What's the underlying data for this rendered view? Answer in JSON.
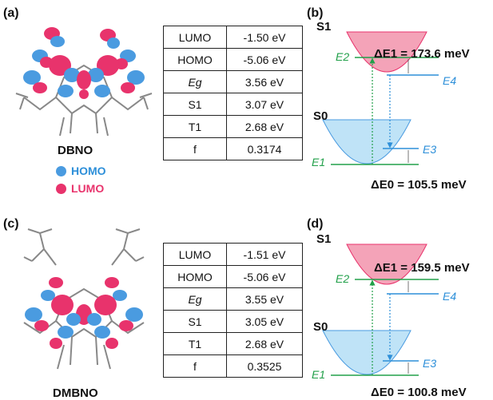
{
  "panels": {
    "a": {
      "label": "(a)"
    },
    "b": {
      "label": "(b)"
    },
    "c": {
      "label": "(c)"
    },
    "d": {
      "label": "(d)"
    }
  },
  "legend": {
    "homo": "HOMO",
    "lumo": "LUMO",
    "homo_color": "#4a9be0",
    "lumo_color": "#e8336c"
  },
  "molecules": [
    {
      "name": "DBNO",
      "rows": [
        {
          "key": "LUMO",
          "value": "-1.50 eV"
        },
        {
          "key": "HOMO",
          "value": "-5.06 eV"
        },
        {
          "key": "Eg",
          "value": "3.56 eV"
        },
        {
          "key": "S1",
          "value": "3.07 eV"
        },
        {
          "key": "T1",
          "value": "2.68 eV"
        },
        {
          "key": "f",
          "value": "0.3174"
        }
      ],
      "diagram": {
        "s1": "S1",
        "s0": "S0",
        "e1": "E1",
        "e2": "E2",
        "e3": "E3",
        "e4": "E4",
        "delta_e1": "ΔE1 = 173.6 meV",
        "delta_e0": "ΔE0 = 105.5 meV"
      }
    },
    {
      "name": "DMBNO",
      "rows": [
        {
          "key": "LUMO",
          "value": "-1.51 eV"
        },
        {
          "key": "HOMO",
          "value": "-5.06 eV"
        },
        {
          "key": "Eg",
          "value": "3.55 eV"
        },
        {
          "key": "S1",
          "value": "3.05 eV"
        },
        {
          "key": "T1",
          "value": "2.68 eV"
        },
        {
          "key": "f",
          "value": "0.3525"
        }
      ],
      "diagram": {
        "s1": "S1",
        "s0": "S0",
        "e1": "E1",
        "e2": "E2",
        "e3": "E3",
        "e4": "E4",
        "delta_e1": "ΔE1 = 159.5 meV",
        "delta_e0": "ΔE0 = 100.8 meV"
      }
    }
  ],
  "colors": {
    "s1_fill": "#f4a3b8",
    "s0_fill": "#bfe3f7",
    "green": "#22a04a",
    "blue": "#2d8fd9"
  }
}
